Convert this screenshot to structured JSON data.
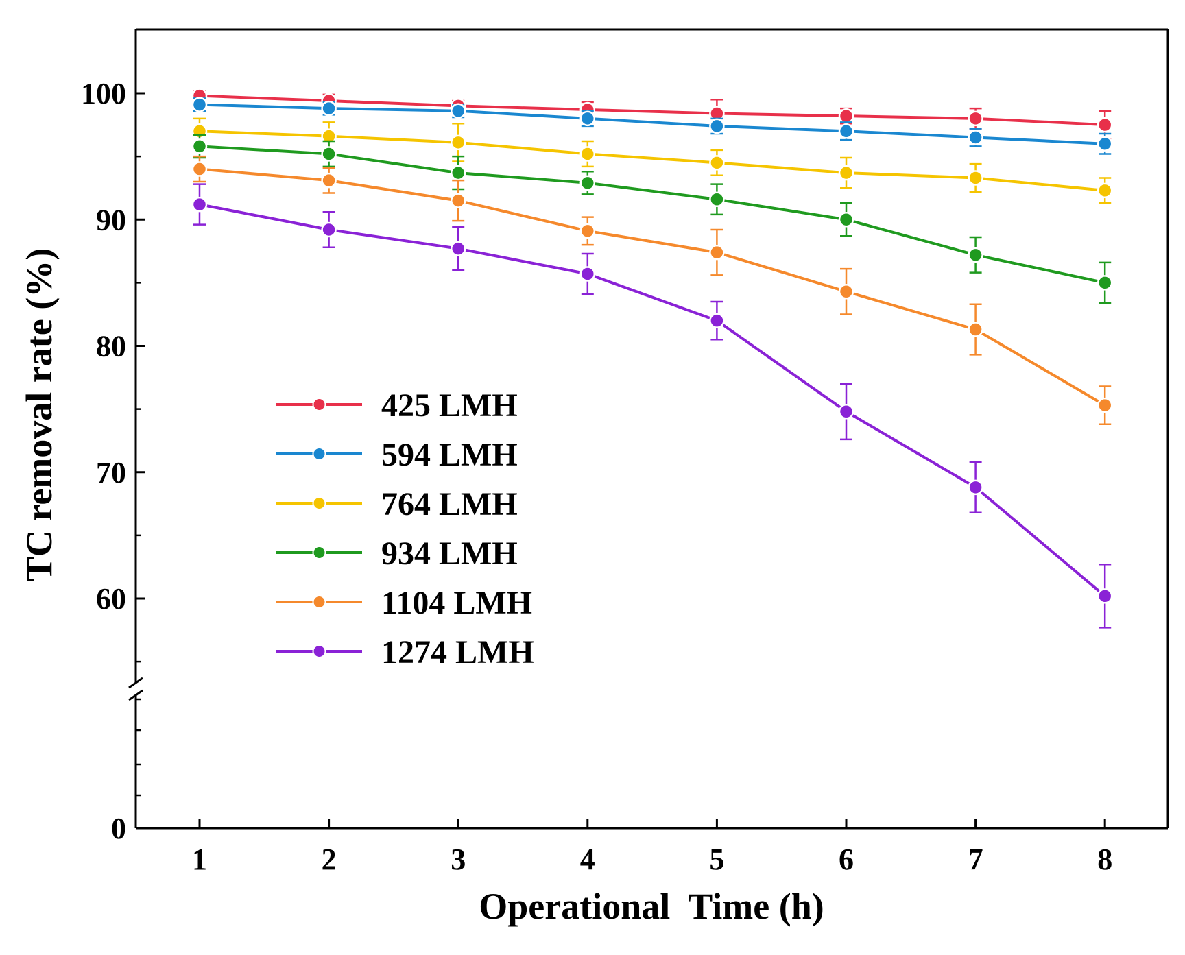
{
  "chart_data": {
    "type": "line",
    "title": "",
    "xlabel": "Operational  Time (h)",
    "ylabel": "TC removal rate (%)",
    "x": [
      1,
      2,
      3,
      4,
      5,
      6,
      7,
      8
    ],
    "xlim": [
      0.5,
      8.5
    ],
    "y_axis_break": [
      52,
      105
    ],
    "y_ticks": [
      0,
      60,
      70,
      80,
      90,
      100
    ],
    "ylim_upper_segment": [
      55,
      105
    ],
    "grid": false,
    "error_bars": true,
    "legend_placement": "center-left",
    "series": [
      {
        "name": "425 LMH",
        "color": "#e8304a",
        "values": [
          99.8,
          99.4,
          99.0,
          98.7,
          98.4,
          98.2,
          98.0,
          97.5
        ],
        "errors": [
          0.4,
          0.5,
          0.4,
          0.6,
          1.1,
          0.6,
          0.8,
          1.1
        ]
      },
      {
        "name": "594 LMH",
        "color": "#1a87d0",
        "values": [
          99.1,
          98.8,
          98.6,
          98.0,
          97.4,
          97.0,
          96.5,
          96.0
        ],
        "errors": [
          0.5,
          0.5,
          0.5,
          0.6,
          0.6,
          0.7,
          0.7,
          0.8
        ]
      },
      {
        "name": "764 LMH",
        "color": "#f5c400",
        "values": [
          97.0,
          96.6,
          96.1,
          95.2,
          94.5,
          93.7,
          93.3,
          92.3
        ],
        "errors": [
          1.0,
          1.1,
          1.5,
          1.0,
          1.0,
          1.2,
          1.1,
          1.0
        ]
      },
      {
        "name": "934 LMH",
        "color": "#1f9a1f",
        "values": [
          95.8,
          95.2,
          93.7,
          92.9,
          91.6,
          90.0,
          87.2,
          85.0
        ],
        "errors": [
          0.9,
          1.0,
          1.3,
          0.9,
          1.2,
          1.3,
          1.4,
          1.6
        ]
      },
      {
        "name": "1104 LMH",
        "color": "#f5892c",
        "values": [
          94.0,
          93.1,
          91.5,
          89.1,
          87.4,
          84.3,
          81.3,
          75.3
        ],
        "errors": [
          1.0,
          1.0,
          1.6,
          1.1,
          1.8,
          1.8,
          2.0,
          1.5
        ]
      },
      {
        "name": "1274 LMH",
        "color": "#8a22d6",
        "values": [
          91.2,
          89.2,
          87.7,
          85.7,
          82.0,
          74.8,
          68.8,
          60.2
        ],
        "errors": [
          1.6,
          1.4,
          1.7,
          1.6,
          1.5,
          2.2,
          2.0,
          2.5
        ]
      }
    ]
  }
}
